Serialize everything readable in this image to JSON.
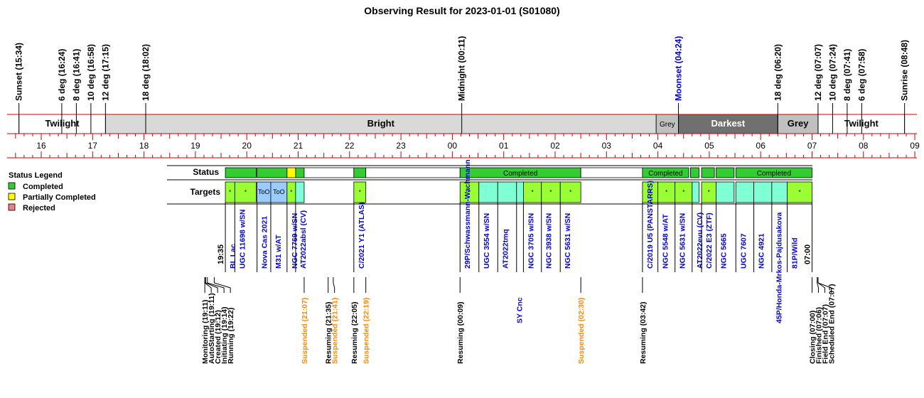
{
  "chart_data": {
    "type": "timeline",
    "title": "Observing Result for 2023-01-01 (S01080)",
    "colors": {
      "completed": "#33cc33",
      "partial": "#ffff00",
      "rejected": "#f08080",
      "target_bright": "#99ff33",
      "target_teal": "#7fffd4",
      "target_blue": "#99ccff",
      "bright": "#d9d9d9",
      "grey": "#c0c0c0",
      "darkest": "#707070",
      "red": "#cc0000",
      "blue_text": "#0000cc",
      "orange_text": "#ff8800"
    },
    "legend": {
      "title": "Status Legend",
      "items": [
        {
          "label": "Completed",
          "color": "#33cc33"
        },
        {
          "label": "Partially Completed",
          "color": "#ffff00"
        },
        {
          "label": "Rejected",
          "color": "#f08080"
        }
      ]
    },
    "row_labels": {
      "status": "Status",
      "targets": "Targets"
    },
    "hour_ticks": [
      "16",
      "17",
      "18",
      "19",
      "20",
      "21",
      "22",
      "23",
      "00",
      "01",
      "02",
      "03",
      "04",
      "05",
      "06",
      "07",
      "08",
      "09"
    ],
    "sky_events": [
      {
        "label": "Sunset (15:34)",
        "time": "15:34",
        "color": "black"
      },
      {
        "label": "6 deg (16:24)",
        "time": "16:24",
        "color": "black"
      },
      {
        "label": "8 deg (16:41)",
        "time": "16:41",
        "color": "black"
      },
      {
        "label": "10 deg (16:58)",
        "time": "16:58",
        "color": "black"
      },
      {
        "label": "12 deg (17:15)",
        "time": "17:15",
        "color": "black"
      },
      {
        "label": "18 deg (18:02)",
        "time": "18:02",
        "color": "black"
      },
      {
        "label": "Midnight (00:11)",
        "time": "00:11",
        "color": "black"
      },
      {
        "label": "Moonset (04:24)",
        "time": "04:24",
        "color": "blue"
      },
      {
        "label": "18 deg (06:20)",
        "time": "06:20",
        "color": "black"
      },
      {
        "label": "12 deg (07:07)",
        "time": "07:07",
        "color": "black"
      },
      {
        "label": "10 deg (07:24)",
        "time": "07:24",
        "color": "black"
      },
      {
        "label": "8 deg (07:41)",
        "time": "07:41",
        "color": "black"
      },
      {
        "label": "6 deg (07:58)",
        "time": "07:58",
        "color": "black"
      },
      {
        "label": "Sunrise (08:48)",
        "time": "08:48",
        "color": "black"
      }
    ],
    "sky_bands": [
      {
        "label": "Twilight",
        "start": "15:34",
        "end": "17:15",
        "fill": "white"
      },
      {
        "label": "Bright",
        "start": "17:15",
        "end": "03:58",
        "fill": "bright"
      },
      {
        "label": "Grey",
        "start": "03:58",
        "end": "04:24",
        "fill": "grey"
      },
      {
        "label": "Darkest",
        "start": "04:24",
        "end": "06:20",
        "fill": "darkest"
      },
      {
        "label": "Grey",
        "start": "06:20",
        "end": "07:07",
        "fill": "grey"
      },
      {
        "label": "Twilight",
        "start": "07:07",
        "end": "08:48",
        "fill": "white"
      }
    ],
    "status_segments": [
      {
        "start": "19:35",
        "end": "20:11",
        "status": "completed",
        "label": ""
      },
      {
        "start": "20:12",
        "end": "20:47",
        "status": "completed",
        "label": ""
      },
      {
        "start": "20:47",
        "end": "20:57",
        "status": "partial",
        "label": ""
      },
      {
        "start": "20:57",
        "end": "21:07",
        "status": "completed",
        "label": ""
      },
      {
        "start": "21:07",
        "end": "22:05",
        "status": "none",
        "label": ""
      },
      {
        "start": "22:05",
        "end": "22:19",
        "status": "completed",
        "label": ""
      },
      {
        "start": "22:19",
        "end": "00:09",
        "status": "none",
        "label": ""
      },
      {
        "start": "00:09",
        "end": "02:30",
        "status": "completed",
        "label": "Completed"
      },
      {
        "start": "02:30",
        "end": "03:42",
        "status": "none",
        "label": ""
      },
      {
        "start": "03:42",
        "end": "04:36",
        "status": "completed",
        "label": "Completed"
      },
      {
        "start": "04:38",
        "end": "04:48",
        "status": "completed",
        "label": ""
      },
      {
        "start": "04:51",
        "end": "05:06",
        "status": "completed",
        "label": ""
      },
      {
        "start": "05:08",
        "end": "05:29",
        "status": "completed",
        "label": ""
      },
      {
        "start": "05:31",
        "end": "07:00",
        "status": "completed",
        "label": "Completed"
      }
    ],
    "targets": [
      {
        "name": "BL Lac",
        "start": "19:35",
        "end": "19:46",
        "fill": "target_bright",
        "mark": "*",
        "link": true
      },
      {
        "name": "UGC 11698 w/SN",
        "start": "19:46",
        "end": "20:11",
        "fill": "target_bright",
        "mark": "*",
        "link": true
      },
      {
        "name": "Nova Cas 2021",
        "start": "20:12",
        "end": "20:28",
        "fill": "target_blue",
        "mark": "ToO",
        "link": true
      },
      {
        "name": "M31 w/AT",
        "start": "20:28",
        "end": "20:47",
        "fill": "target_blue",
        "mark": "ToO",
        "link": true
      },
      {
        "name": "NGC 7769 w/SN",
        "start": "20:47",
        "end": "20:57",
        "fill": "target_bright",
        "mark": "*",
        "link": true
      },
      {
        "name": "AT2022absl (CV)",
        "start": "20:57",
        "end": "21:07",
        "fill": "target_teal",
        "mark": "",
        "link": true
      },
      {
        "name": "C/2021 Y1 (ATLAS)",
        "start": "22:05",
        "end": "22:19",
        "fill": "target_bright",
        "mark": "*",
        "link": true
      },
      {
        "name": "29P/Schwassmann-Wachmann",
        "start": "00:09",
        "end": "00:31",
        "fill": "target_bright",
        "mark": "*",
        "link": true
      },
      {
        "name": "UGC 3554 w/SN",
        "start": "00:31",
        "end": "00:53",
        "fill": "target_teal",
        "mark": "",
        "link": true
      },
      {
        "name": "AT2022tmq",
        "start": "00:53",
        "end": "01:15",
        "fill": "target_teal",
        "mark": "",
        "link": true
      },
      {
        "name": "SY Cnc",
        "start": "01:15",
        "end": "01:23",
        "fill": "target_teal",
        "mark": "",
        "link": true,
        "low": true
      },
      {
        "name": "NGC 3705 w/SN",
        "start": "01:23",
        "end": "01:44",
        "fill": "target_bright",
        "mark": "*",
        "link": true
      },
      {
        "name": "NGC 3938 w/SN",
        "start": "01:44",
        "end": "02:06",
        "fill": "target_bright",
        "mark": "*",
        "link": true
      },
      {
        "name": "NGC 5631 w/SN",
        "start": "02:06",
        "end": "02:30",
        "fill": "target_bright",
        "mark": "*",
        "link": true
      },
      {
        "name": "C/2019 U5 (PANSTARRS)",
        "start": "03:42",
        "end": "04:00",
        "fill": "target_bright",
        "mark": "*",
        "link": true
      },
      {
        "name": "NGC 5548 w/AT",
        "start": "04:00",
        "end": "04:20",
        "fill": "target_bright",
        "mark": "*",
        "link": true
      },
      {
        "name": "NGC 5631 w/SN",
        "start": "04:20",
        "end": "04:40",
        "fill": "target_bright",
        "mark": "*",
        "link": true
      },
      {
        "name": "AT2022evu (CV)",
        "start": "04:40",
        "end": "04:48",
        "fill": "target_teal",
        "mark": "",
        "link": true
      },
      {
        "name": "C/2022 E3 (ZTF)",
        "start": "04:51",
        "end": "05:08",
        "fill": "target_bright",
        "mark": "*",
        "link": true
      },
      {
        "name": "NGC 5665",
        "start": "05:08",
        "end": "05:29",
        "fill": "target_teal",
        "mark": "",
        "link": true
      },
      {
        "name": "UGC 7607",
        "start": "05:31",
        "end": "05:52",
        "fill": "target_teal",
        "mark": "",
        "link": true
      },
      {
        "name": "NGC 4921",
        "start": "05:52",
        "end": "06:13",
        "fill": "target_teal",
        "mark": "",
        "link": true
      },
      {
        "name": "45P/Honda-Mrkos-Pajdusakova",
        "start": "06:13",
        "end": "06:31",
        "fill": "target_teal",
        "mark": "",
        "link": true,
        "low": true
      },
      {
        "name": "81P/Wild",
        "start": "06:31",
        "end": "07:00",
        "fill": "target_bright",
        "mark": "*",
        "link": true
      }
    ],
    "time_marks": [
      {
        "label": "19:35",
        "time": "19:35",
        "row": "upper",
        "color": "black"
      },
      {
        "label": "07:00",
        "time": "07:00",
        "row": "upper",
        "color": "black"
      }
    ],
    "events": [
      {
        "label": "Monitoring (19:11)",
        "time": "19:11",
        "color": "black"
      },
      {
        "label": "AutoStarting (19:11)",
        "time": "19:11",
        "color": "black"
      },
      {
        "label": "Created (19:12)",
        "time": "19:12",
        "color": "black"
      },
      {
        "label": "Initiating (19:14)",
        "time": "19:14",
        "color": "black"
      },
      {
        "label": "Running (19:22)",
        "time": "19:22",
        "color": "black"
      },
      {
        "label": "Suspended (21:07)",
        "time": "21:07",
        "color": "orange"
      },
      {
        "label": "Resuming (21:35)",
        "time": "21:35",
        "color": "black"
      },
      {
        "label": "Suspended (21:41)",
        "time": "21:41",
        "color": "orange"
      },
      {
        "label": "Resuming (22:05)",
        "time": "22:05",
        "color": "black"
      },
      {
        "label": "Suspended (22:19)",
        "time": "22:19",
        "color": "orange"
      },
      {
        "label": "Resuming (00:09)",
        "time": "00:09",
        "color": "black"
      },
      {
        "label": "Suspended (02:30)",
        "time": "02:30",
        "color": "orange"
      },
      {
        "label": "Resuming (03:42)",
        "time": "03:42",
        "color": "black"
      },
      {
        "label": "Closing (07:00)",
        "time": "07:00",
        "color": "black"
      },
      {
        "label": "Finished (07:06)",
        "time": "07:06",
        "color": "black"
      },
      {
        "label": "Field End (07:07)",
        "time": "07:07",
        "color": "black"
      },
      {
        "label": "Scheduled End (07:07)",
        "time": "07:07",
        "color": "black"
      }
    ]
  }
}
